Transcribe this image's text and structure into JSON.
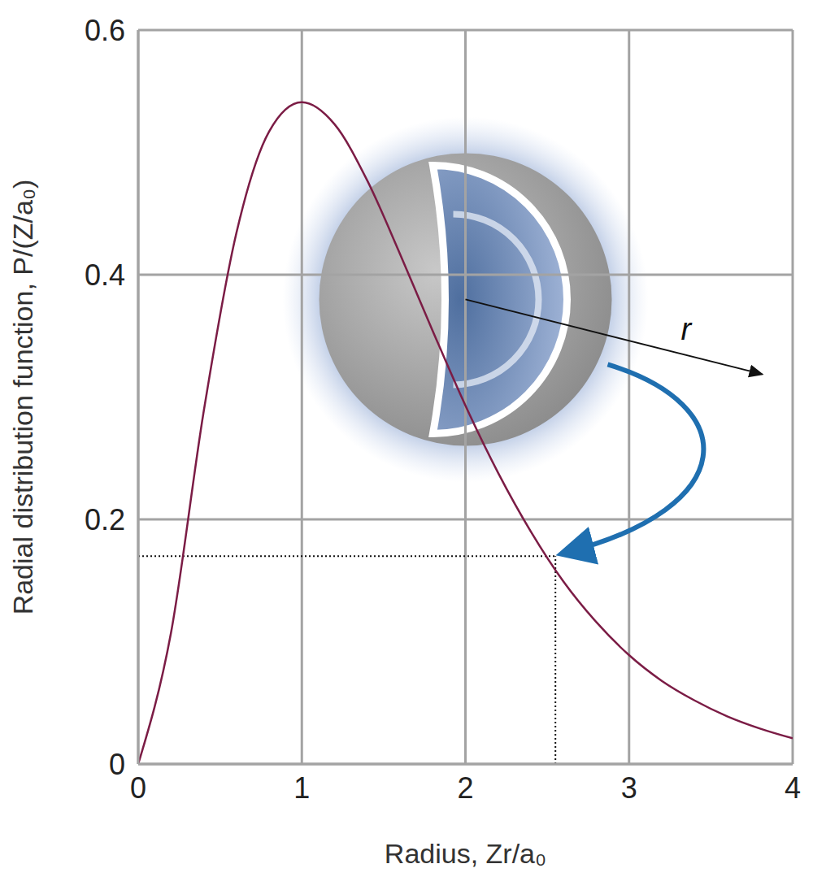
{
  "chart_data": {
    "type": "line",
    "x_label": "Radius, Zr/a₀",
    "y_label": "Radial distribution function, P/(Z/a₀)",
    "x": [
      0,
      0.2,
      0.4,
      0.6,
      0.8,
      1.0,
      1.2,
      1.4,
      1.6,
      1.8,
      2.0,
      2.2,
      2.4,
      2.6,
      2.8,
      3.0,
      3.2,
      3.4,
      3.6,
      3.8,
      4.0
    ],
    "values": [
      0,
      0.107,
      0.288,
      0.434,
      0.517,
      0.541,
      0.523,
      0.477,
      0.417,
      0.354,
      0.293,
      0.238,
      0.19,
      0.149,
      0.116,
      0.089,
      0.068,
      0.052,
      0.039,
      0.029,
      0.021
    ],
    "color": "#7b1c45",
    "line_style": "solid",
    "xlim": [
      0,
      4
    ],
    "ylim": [
      0,
      0.6
    ],
    "xticks": [
      0,
      1,
      2,
      3,
      4
    ],
    "yticks": [
      0,
      0.2,
      0.4,
      0.6
    ],
    "grid": true,
    "highlight": {
      "x": 2.55,
      "y": 0.17
    },
    "annotation": "r"
  }
}
